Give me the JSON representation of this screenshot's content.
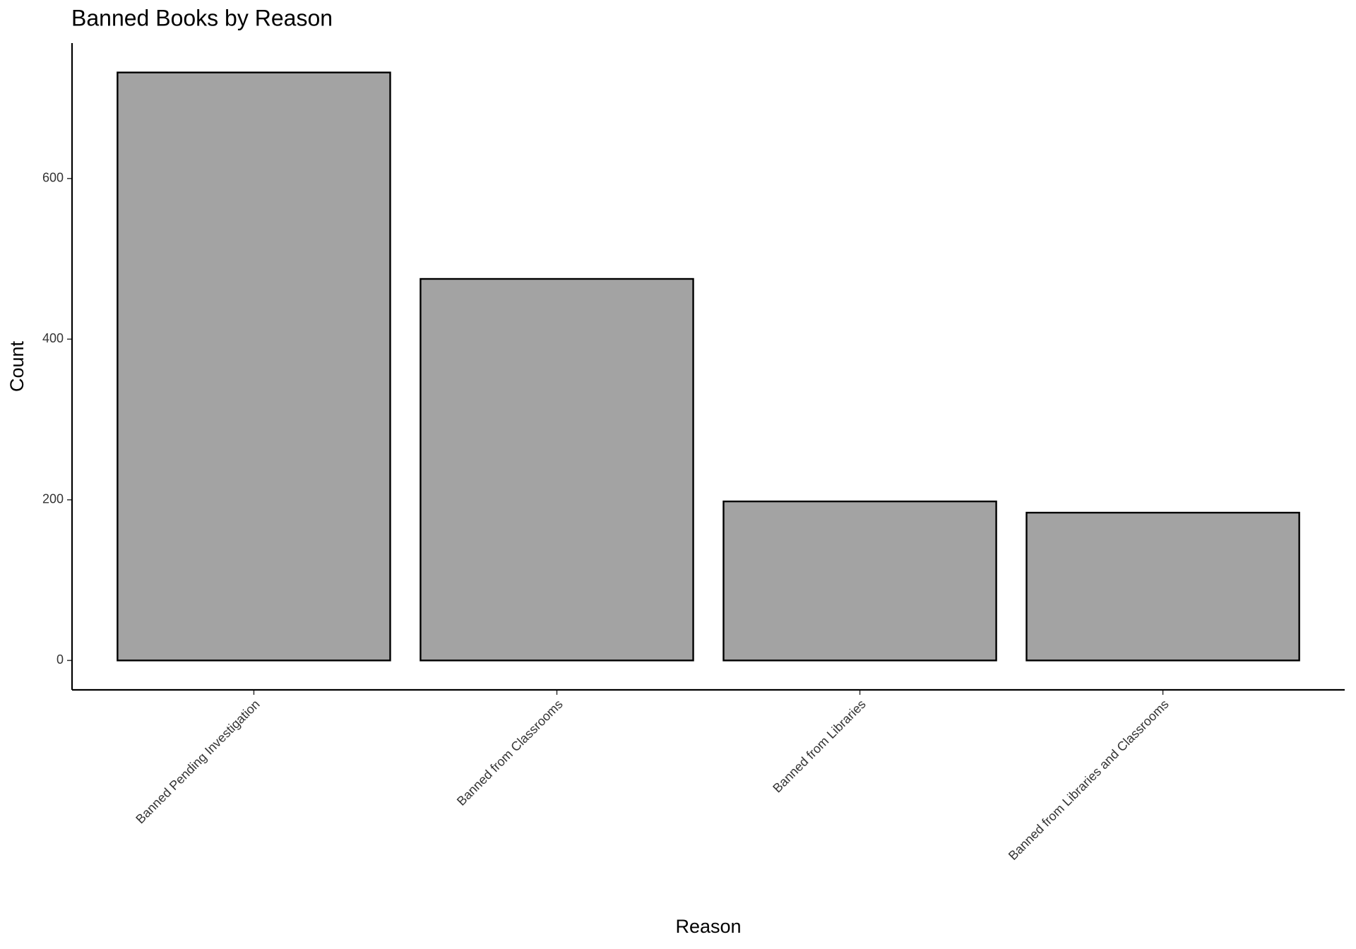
{
  "chart_data": {
    "type": "bar",
    "title": "Banned Books by Reason",
    "x_label": "Reason",
    "y_label": "Count",
    "categories": [
      "Banned Pending Investigation",
      "Banned from Classrooms",
      "Banned from Libraries",
      "Banned from Libraries and Classrooms"
    ],
    "values": [
      732,
      475,
      198,
      184
    ],
    "color": "#a3a3a3",
    "ylim": [
      -36.6,
      768.6
    ],
    "yticks": [
      0,
      200,
      400,
      600
    ],
    "grid": false
  }
}
